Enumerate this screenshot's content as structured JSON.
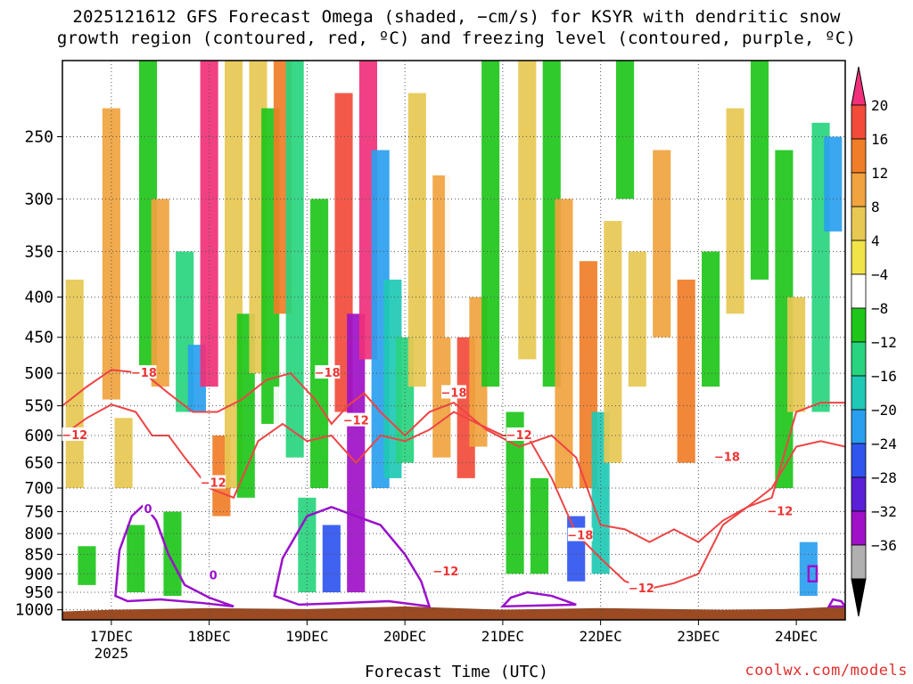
{
  "title_line1": "2025121612 GFS Forecast Omega (shaded, −cm/s) for KSYR with dendritic snow",
  "title_line2": "growth region (contoured, red, ºC) and freezing level (contoured, purple, ºC)",
  "xaxis_label": "Forecast Time (UTC)",
  "credit": "coolwx.com/models",
  "chart_data": {
    "type": "heatmap",
    "title": "2025121612 GFS Forecast Omega (shaded, −cm/s) for KSYR with dendritic snow growth region (contoured, red, ºC) and freezing level (contoured, purple, ºC)",
    "xlabel": "Forecast Time (UTC)",
    "ylabel": "",
    "y_scale": "log",
    "y_inverted": true,
    "y_ticks": [
      250,
      300,
      350,
      400,
      450,
      500,
      550,
      600,
      650,
      700,
      750,
      800,
      850,
      900,
      950,
      1000
    ],
    "ylim": [
      200,
      1030
    ],
    "x_ticks": [
      "17DEC",
      "18DEC",
      "19DEC",
      "20DEC",
      "21DEC",
      "22DEC",
      "23DEC",
      "24DEC"
    ],
    "x_year_label": "2025",
    "x_range_hours": [
      -12,
      180
    ],
    "grid": true,
    "colorbar": {
      "labels": [
        "20",
        "16",
        "12",
        "8",
        "4",
        "−4",
        "−8",
        "−12",
        "−16",
        "−20",
        "−24",
        "−28",
        "−32",
        "−36"
      ],
      "colors": [
        "#f0307a",
        "#f24b3a",
        "#f07d27",
        "#f0a33e",
        "#e7c852",
        "#f0e449",
        "#ffffff",
        "#1ec61a",
        "#28d47e",
        "#1fc9b5",
        "#2a9ff0",
        "#2f55ef",
        "#5a20d8",
        "#a010c8",
        "#b0b0b0",
        "#000000"
      ]
    },
    "omega_cells": [
      {
        "t": -9,
        "p1": 380,
        "p2": 700,
        "v": 6
      },
      {
        "t": -6,
        "p1": 830,
        "p2": 930,
        "v": -10
      },
      {
        "t": 0,
        "p1": 230,
        "p2": 540,
        "v": 8
      },
      {
        "t": 3,
        "p1": 570,
        "p2": 700,
        "v": 5
      },
      {
        "t": 6,
        "p1": 780,
        "p2": 950,
        "v": -9
      },
      {
        "t": 9,
        "p1": 200,
        "p2": 500,
        "v": -10
      },
      {
        "t": 12,
        "p1": 300,
        "p2": 520,
        "v": 9
      },
      {
        "t": 15,
        "p1": 750,
        "p2": 960,
        "v": -12
      },
      {
        "t": 18,
        "p1": 350,
        "p2": 560,
        "v": -14
      },
      {
        "t": 21,
        "p1": 460,
        "p2": 560,
        "v": -22
      },
      {
        "t": 24,
        "p1": 200,
        "p2": 520,
        "v": 20
      },
      {
        "t": 27,
        "p1": 600,
        "p2": 760,
        "v": 12
      },
      {
        "t": 30,
        "p1": 200,
        "p2": 700,
        "v": 6
      },
      {
        "t": 33,
        "p1": 420,
        "p2": 720,
        "v": -9
      },
      {
        "t": 36,
        "p1": 200,
        "p2": 500,
        "v": 5
      },
      {
        "t": 39,
        "p1": 230,
        "p2": 580,
        "v": -11
      },
      {
        "t": 42,
        "p1": 200,
        "p2": 420,
        "v": 12
      },
      {
        "t": 42,
        "p1": 520,
        "p2": 720,
        "v": -7
      },
      {
        "t": 45,
        "p1": 200,
        "p2": 640,
        "v": -15
      },
      {
        "t": 48,
        "p1": 720,
        "p2": 950,
        "v": -16
      },
      {
        "t": 51,
        "p1": 300,
        "p2": 700,
        "v": -10
      },
      {
        "t": 54,
        "p1": 780,
        "p2": 950,
        "v": -28
      },
      {
        "t": 57,
        "p1": 220,
        "p2": 560,
        "v": 16
      },
      {
        "t": 60,
        "p1": 420,
        "p2": 950,
        "v": -36
      },
      {
        "t": 63,
        "p1": 200,
        "p2": 480,
        "v": 20
      },
      {
        "t": 66,
        "p1": 260,
        "p2": 700,
        "v": -24
      },
      {
        "t": 69,
        "p1": 380,
        "p2": 680,
        "v": -20
      },
      {
        "t": 72,
        "p1": 450,
        "p2": 650,
        "v": -14
      },
      {
        "t": 75,
        "p1": 220,
        "p2": 520,
        "v": 6
      },
      {
        "t": 81,
        "p1": 280,
        "p2": 640,
        "v": 8
      },
      {
        "t": 84,
        "p1": 200,
        "p2": 450,
        "v": -8
      },
      {
        "t": 87,
        "p1": 450,
        "p2": 680,
        "v": 16
      },
      {
        "t": 90,
        "p1": 400,
        "p2": 620,
        "v": 9
      },
      {
        "t": 93,
        "p1": 200,
        "p2": 520,
        "v": -10
      },
      {
        "t": 99,
        "p1": 560,
        "p2": 900,
        "v": -12
      },
      {
        "t": 102,
        "p1": 200,
        "p2": 480,
        "v": 5
      },
      {
        "t": 105,
        "p1": 680,
        "p2": 900,
        "v": -9
      },
      {
        "t": 108,
        "p1": 200,
        "p2": 520,
        "v": -11
      },
      {
        "t": 111,
        "p1": 300,
        "p2": 700,
        "v": 8
      },
      {
        "t": 114,
        "p1": 760,
        "p2": 920,
        "v": -26
      },
      {
        "t": 117,
        "p1": 360,
        "p2": 700,
        "v": 12
      },
      {
        "t": 120,
        "p1": 560,
        "p2": 900,
        "v": -18
      },
      {
        "t": 123,
        "p1": 320,
        "p2": 650,
        "v": 6
      },
      {
        "t": 126,
        "p1": 200,
        "p2": 300,
        "v": -10
      },
      {
        "t": 129,
        "p1": 350,
        "p2": 520,
        "v": 5
      },
      {
        "t": 135,
        "p1": 260,
        "p2": 450,
        "v": 9
      },
      {
        "t": 141,
        "p1": 380,
        "p2": 650,
        "v": 12
      },
      {
        "t": 147,
        "p1": 350,
        "p2": 520,
        "v": -9
      },
      {
        "t": 153,
        "p1": 230,
        "p2": 420,
        "v": 6
      },
      {
        "t": 159,
        "p1": 200,
        "p2": 380,
        "v": -12
      },
      {
        "t": 165,
        "p1": 260,
        "p2": 700,
        "v": -10
      },
      {
        "t": 168,
        "p1": 400,
        "p2": 560,
        "v": 6
      },
      {
        "t": 171,
        "p1": 820,
        "p2": 960,
        "v": -22
      },
      {
        "t": 174,
        "p1": 240,
        "p2": 560,
        "v": -14
      },
      {
        "t": 177,
        "p1": 250,
        "p2": 330,
        "v": -24
      }
    ],
    "contour_labels": [
      {
        "text": "−18",
        "t": 8,
        "p": 500,
        "color": "#ee3333"
      },
      {
        "text": "−12",
        "t": -9,
        "p": 600,
        "color": "#ee3333"
      },
      {
        "text": "−12",
        "t": 25,
        "p": 690,
        "color": "#ee3333"
      },
      {
        "text": "−18",
        "t": 53,
        "p": 500,
        "color": "#ee3333"
      },
      {
        "text": "−12",
        "t": 60,
        "p": 575,
        "color": "#ee3333"
      },
      {
        "text": "−18",
        "t": 84,
        "p": 530,
        "color": "#ee3333"
      },
      {
        "text": "−12",
        "t": 82,
        "p": 895,
        "color": "#ee3333"
      },
      {
        "text": "−12",
        "t": 100,
        "p": 600,
        "color": "#ee3333"
      },
      {
        "text": "−18",
        "t": 115,
        "p": 805,
        "color": "#ee3333"
      },
      {
        "text": "−12",
        "t": 130,
        "p": 940,
        "color": "#ee3333"
      },
      {
        "text": "−18",
        "t": 151,
        "p": 640,
        "color": "#ee3333"
      },
      {
        "text": "−12",
        "t": 164,
        "p": 750,
        "color": "#ee3333"
      },
      {
        "text": "0",
        "t": 9,
        "p": 745,
        "color": "#9a10cc"
      },
      {
        "text": "0",
        "t": 25,
        "p": 905,
        "color": "#9a10cc"
      }
    ],
    "dgz_minus12_line": [
      [
        -12,
        600
      ],
      [
        -6,
        570
      ],
      [
        0,
        548
      ],
      [
        6,
        560
      ],
      [
        10,
        600
      ],
      [
        14,
        600
      ],
      [
        18,
        640
      ],
      [
        24,
        700
      ],
      [
        30,
        720
      ],
      [
        36,
        610
      ],
      [
        42,
        580
      ],
      [
        48,
        610
      ],
      [
        54,
        600
      ],
      [
        60,
        650
      ],
      [
        66,
        600
      ],
      [
        72,
        610
      ],
      [
        78,
        590
      ],
      [
        84,
        560
      ],
      [
        90,
        580
      ],
      [
        96,
        600
      ],
      [
        102,
        600
      ],
      [
        108,
        680
      ],
      [
        114,
        800
      ],
      [
        120,
        860
      ],
      [
        126,
        920
      ],
      [
        132,
        940
      ],
      [
        138,
        925
      ],
      [
        144,
        900
      ],
      [
        150,
        780
      ],
      [
        156,
        740
      ],
      [
        162,
        720
      ],
      [
        168,
        560
      ],
      [
        174,
        545
      ],
      [
        180,
        545
      ]
    ],
    "dgz_minus18_line": [
      [
        -12,
        550
      ],
      [
        -6,
        520
      ],
      [
        0,
        495
      ],
      [
        8,
        500
      ],
      [
        14,
        530
      ],
      [
        20,
        560
      ],
      [
        26,
        560
      ],
      [
        32,
        540
      ],
      [
        38,
        510
      ],
      [
        44,
        500
      ],
      [
        50,
        540
      ],
      [
        54,
        580
      ],
      [
        58,
        550
      ],
      [
        62,
        530
      ],
      [
        66,
        560
      ],
      [
        72,
        600
      ],
      [
        78,
        560
      ],
      [
        84,
        545
      ],
      [
        92,
        590
      ],
      [
        100,
        620
      ],
      [
        108,
        600
      ],
      [
        114,
        640
      ],
      [
        120,
        780
      ],
      [
        126,
        790
      ],
      [
        132,
        820
      ],
      [
        138,
        790
      ],
      [
        144,
        820
      ],
      [
        150,
        770
      ],
      [
        156,
        740
      ],
      [
        162,
        700
      ],
      [
        168,
        620
      ],
      [
        174,
        610
      ],
      [
        180,
        620
      ]
    ],
    "freezing_level_polygons": [
      [
        [
          1,
          960
        ],
        [
          2,
          840
        ],
        [
          5,
          760
        ],
        [
          8,
          735
        ],
        [
          11,
          770
        ],
        [
          14,
          850
        ],
        [
          18,
          930
        ],
        [
          24,
          965
        ],
        [
          30,
          990
        ],
        [
          22,
          980
        ],
        [
          12,
          970
        ],
        [
          4,
          975
        ]
      ],
      [
        [
          40,
          960
        ],
        [
          42,
          860
        ],
        [
          48,
          760
        ],
        [
          54,
          740
        ],
        [
          60,
          760
        ],
        [
          66,
          780
        ],
        [
          72,
          850
        ],
        [
          76,
          920
        ],
        [
          78,
          990
        ],
        [
          68,
          975
        ],
        [
          58,
          980
        ],
        [
          46,
          985
        ]
      ],
      [
        [
          96,
          990
        ],
        [
          98,
          965
        ],
        [
          102,
          950
        ],
        [
          108,
          960
        ],
        [
          114,
          985
        ]
      ],
      [
        [
          171,
          880
        ],
        [
          173,
          880
        ],
        [
          173,
          920
        ],
        [
          171,
          920
        ]
      ],
      [
        [
          176,
          990
        ],
        [
          177,
          970
        ],
        [
          179,
          975
        ],
        [
          180,
          990
        ]
      ]
    ]
  }
}
